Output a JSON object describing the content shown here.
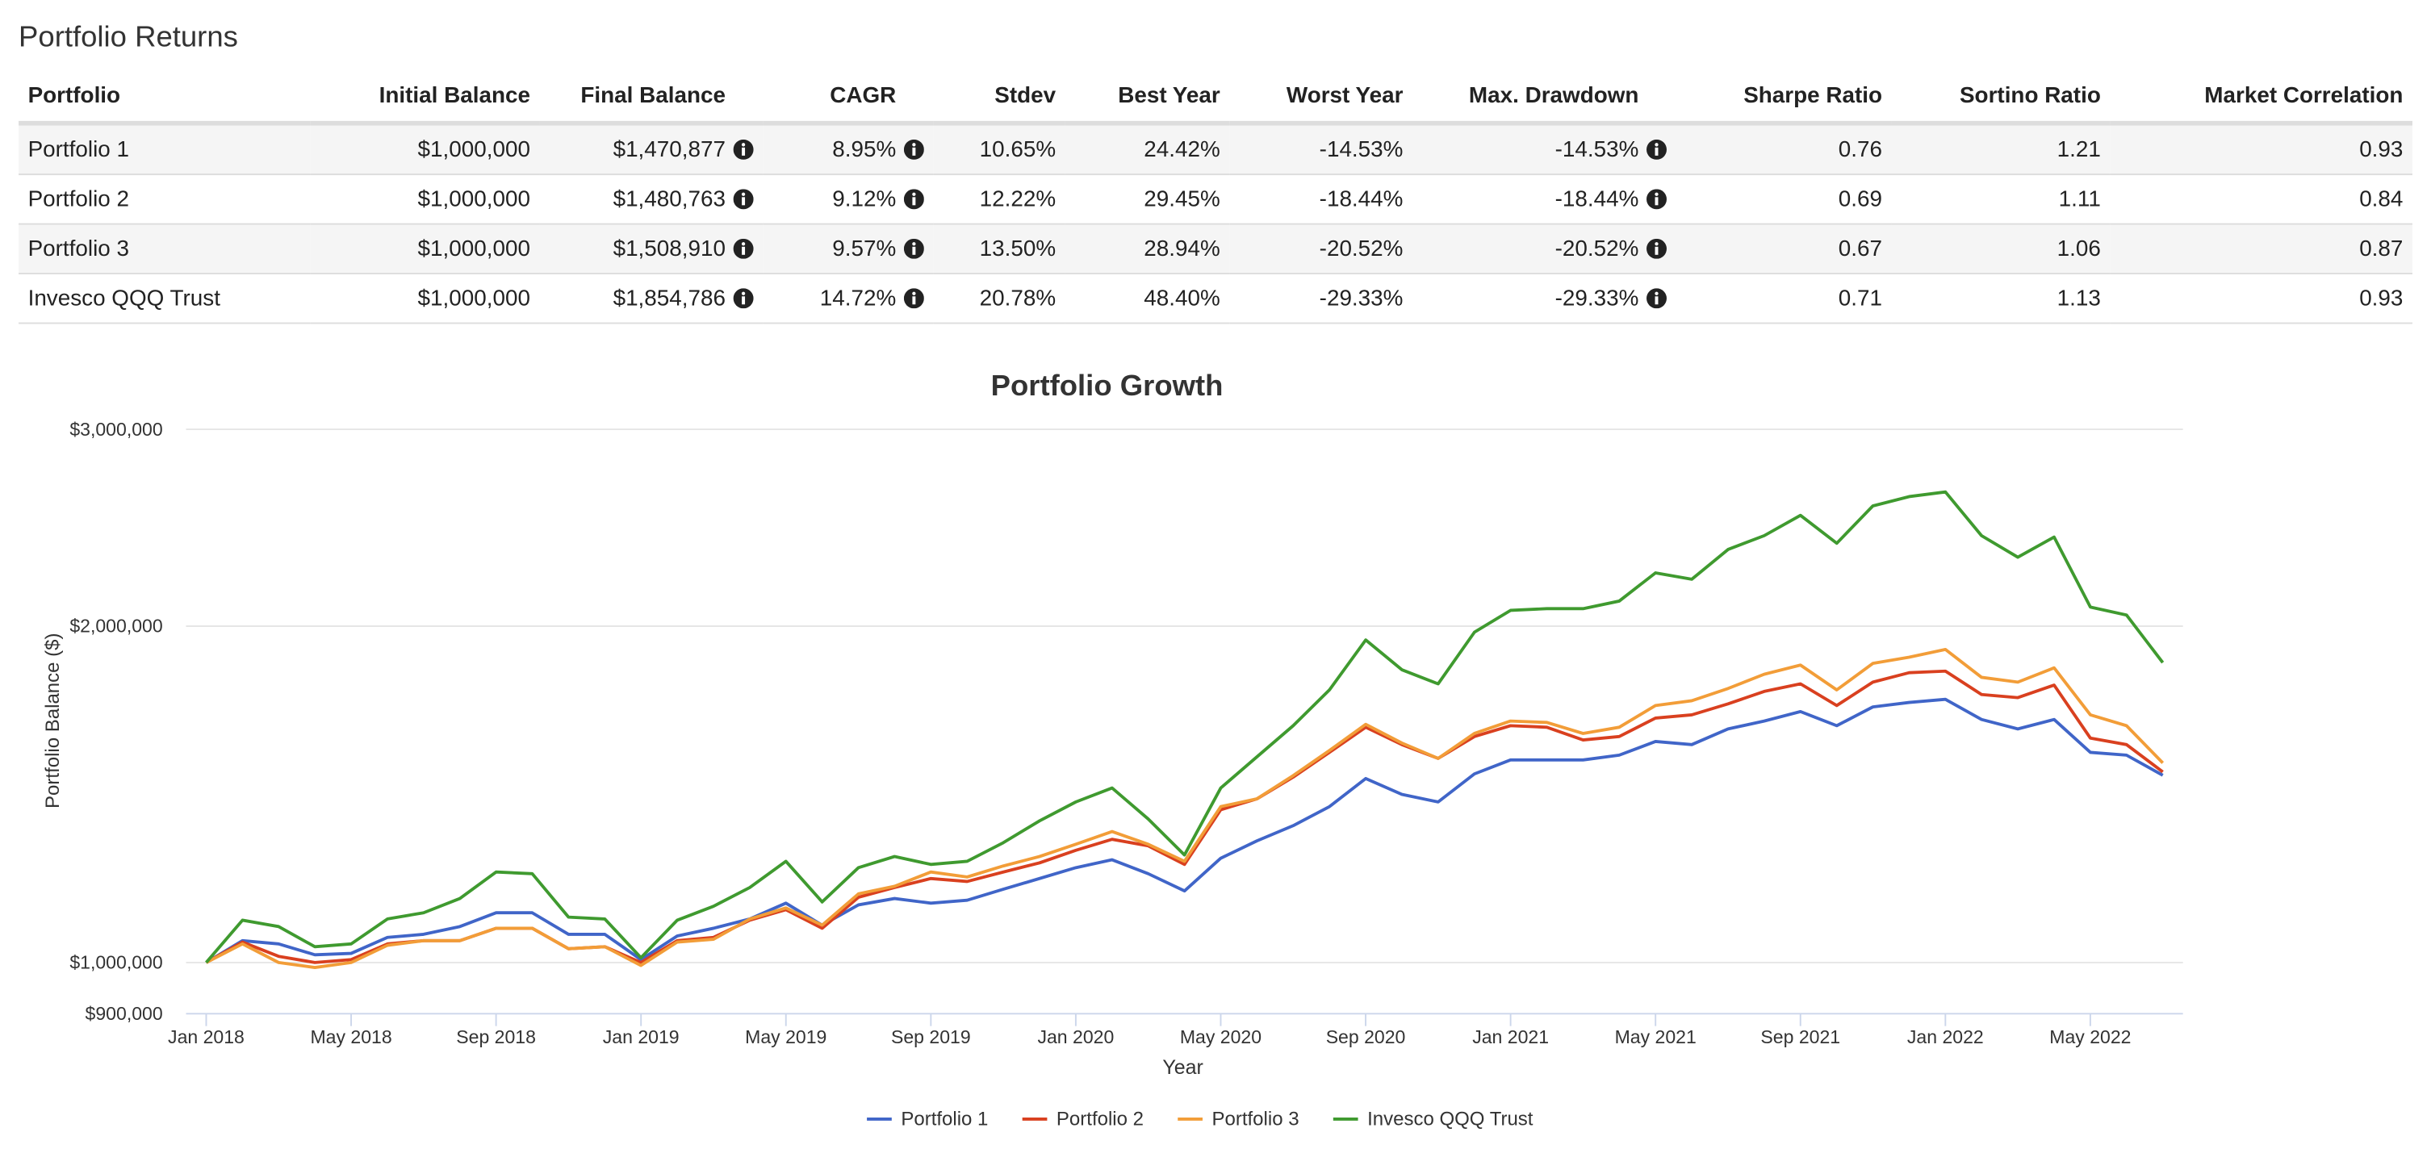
{
  "table": {
    "title": "Portfolio Returns",
    "columns": [
      "Portfolio",
      "Initial Balance",
      "Final Balance",
      "CAGR",
      "Stdev",
      "Best Year",
      "Worst Year",
      "Max. Drawdown",
      "Sharpe Ratio",
      "Sortino Ratio",
      "Market Correlation"
    ],
    "rows": [
      [
        "Portfolio 1",
        "$1,000,000",
        "$1,470,877",
        "8.95%",
        "10.65%",
        "24.42%",
        "-14.53%",
        "-14.53%",
        "0.76",
        "1.21",
        "0.93"
      ],
      [
        "Portfolio 2",
        "$1,000,000",
        "$1,480,763",
        "9.12%",
        "12.22%",
        "29.45%",
        "-18.44%",
        "-18.44%",
        "0.69",
        "1.11",
        "0.84"
      ],
      [
        "Portfolio 3",
        "$1,000,000",
        "$1,508,910",
        "9.57%",
        "13.50%",
        "28.94%",
        "-20.52%",
        "-20.52%",
        "0.67",
        "1.06",
        "0.87"
      ],
      [
        "Invesco QQQ Trust",
        "$1,000,000",
        "$1,854,786",
        "14.72%",
        "20.78%",
        "48.40%",
        "-29.33%",
        "-29.33%",
        "0.71",
        "1.13",
        "0.93"
      ]
    ]
  },
  "chart_data": {
    "type": "line",
    "title": "Portfolio Growth",
    "x_label": "Year",
    "y_label": "Portfolio Balance ($)",
    "categories": [
      "Jan 2018",
      null,
      null,
      null,
      "May 2018",
      null,
      null,
      null,
      "Sep 2018",
      null,
      null,
      null,
      "Jan 2019",
      null,
      null,
      null,
      "May 2019",
      null,
      null,
      null,
      "Sep 2019",
      null,
      null,
      null,
      "Jan 2020",
      null,
      null,
      null,
      "May 2020",
      null,
      null,
      null,
      "Sep 2020",
      null,
      null,
      null,
      "Jan 2021",
      null,
      null,
      null,
      "May 2021",
      null,
      null,
      null,
      "Sep 2021",
      null,
      null,
      null,
      "Jan 2022",
      null,
      null,
      null,
      "May 2022",
      null,
      null
    ],
    "ylim": [
      900000,
      3000000
    ],
    "log_y": true,
    "grid": true,
    "legend": "bottom",
    "yticks": [
      {
        "value": 900000,
        "label": "$900,000"
      },
      {
        "value": 1000000,
        "label": "$1,000,000"
      },
      {
        "value": 2000000,
        "label": "$2,000,000"
      },
      {
        "value": 3000000,
        "label": "$3,000,000"
      }
    ],
    "series": [
      {
        "name": "Portfolio 1",
        "color": "#4065c8",
        "values": [
          1000000,
          1046000,
          1039000,
          1016000,
          1019000,
          1053000,
          1060000,
          1077000,
          1108000,
          1108000,
          1060000,
          1060000,
          1006000,
          1056000,
          1073000,
          1094000,
          1130000,
          1080000,
          1126000,
          1141000,
          1130000,
          1137000,
          1163000,
          1189000,
          1216000,
          1236000,
          1201000,
          1159000,
          1240000,
          1285000,
          1326000,
          1379000,
          1461000,
          1414000,
          1392000,
          1475000,
          1518000,
          1518000,
          1518000,
          1533000,
          1577000,
          1567000,
          1618000,
          1645000,
          1677000,
          1629000,
          1693000,
          1709000,
          1720000,
          1650000,
          1618000,
          1650000,
          1542000,
          1533000,
          1471000
        ]
      },
      {
        "name": "Portfolio 2",
        "color": "#d9401f",
        "values": [
          1000000,
          1043000,
          1013000,
          1000000,
          1006000,
          1039000,
          1046000,
          1046000,
          1073000,
          1073000,
          1029000,
          1033000,
          1000000,
          1046000,
          1053000,
          1091000,
          1115000,
          1073000,
          1144000,
          1167000,
          1189000,
          1182000,
          1205000,
          1228000,
          1260000,
          1289000,
          1272000,
          1224000,
          1370000,
          1401000,
          1465000,
          1542000,
          1624000,
          1567000,
          1523000,
          1593000,
          1629000,
          1624000,
          1582000,
          1593000,
          1655000,
          1666000,
          1704000,
          1748000,
          1776000,
          1698000,
          1782000,
          1817000,
          1823000,
          1737000,
          1726000,
          1771000,
          1588000,
          1567000,
          1481000
        ]
      },
      {
        "name": "Portfolio 3",
        "color": "#f29d38",
        "values": [
          1000000,
          1039000,
          1000000,
          990000,
          1000000,
          1036000,
          1046000,
          1046000,
          1073000,
          1073000,
          1029000,
          1033000,
          994000,
          1043000,
          1049000,
          1094000,
          1119000,
          1080000,
          1152000,
          1170000,
          1205000,
          1193000,
          1220000,
          1244000,
          1276000,
          1310000,
          1276000,
          1232000,
          1379000,
          1401000,
          1470000,
          1548000,
          1634000,
          1572000,
          1523000,
          1603000,
          1645000,
          1640000,
          1603000,
          1624000,
          1698000,
          1715000,
          1759000,
          1811000,
          1846000,
          1754000,
          1852000,
          1876000,
          1906000,
          1800000,
          1782000,
          1835000,
          1666000,
          1629000,
          1509000
        ]
      },
      {
        "name": "Invesco QQQ Trust",
        "color": "#3f9a2f",
        "values": [
          1000000,
          1091000,
          1077000,
          1033000,
          1039000,
          1094000,
          1108000,
          1141000,
          1205000,
          1201000,
          1098000,
          1094000,
          1010000,
          1091000,
          1123000,
          1167000,
          1232000,
          1133000,
          1216000,
          1244000,
          1224000,
          1232000,
          1280000,
          1339000,
          1392000,
          1433000,
          1344000,
          1248000,
          1433000,
          1528000,
          1629000,
          1754000,
          1944000,
          1828000,
          1776000,
          1975000,
          2066000,
          2073000,
          2073000,
          2106000,
          2232000,
          2203000,
          2342000,
          2410000,
          2513000,
          2372000,
          2562000,
          2612000,
          2637000,
          2410000,
          2305000,
          2403000,
          2080000,
          2046000,
          1855000
        ]
      }
    ]
  }
}
